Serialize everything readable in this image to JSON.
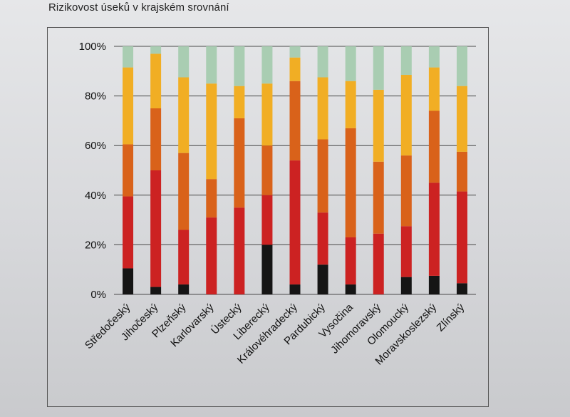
{
  "title": "Rizikovost úseků v krajském srovnání",
  "colors": {
    "black": "#151515",
    "red": "#cc2222",
    "orange": "#d9621a",
    "yellow": "#f1ae24",
    "green": "#a9cdb2"
  },
  "chart_data": {
    "type": "bar",
    "stacked": true,
    "percent": true,
    "title": "Rizikovost úseků v krajském srovnání",
    "xlabel": "",
    "ylabel": "",
    "ylim": [
      0,
      100
    ],
    "yticks": [
      "0%",
      "20%",
      "40%",
      "60%",
      "80%",
      "100%"
    ],
    "grid": true,
    "legend": "none",
    "categories": [
      "Středočeský",
      "Jihočeský",
      "Plzeňský",
      "Karlovarský",
      "Ústecký",
      "Liberecký",
      "Královéhradecký",
      "Pardubický",
      "Vysočina",
      "Jihomoravský",
      "Olomoucký",
      "Moravskoslezský",
      "Zlínský"
    ],
    "series": [
      {
        "color": "black",
        "values": [
          10.5,
          3,
          4,
          0,
          0,
          20,
          4,
          12,
          4,
          0,
          7,
          7.5,
          4.5
        ]
      },
      {
        "color": "red",
        "values": [
          29,
          47,
          22,
          31,
          35,
          20,
          50,
          21,
          19,
          24.5,
          20.5,
          37.5,
          37
        ]
      },
      {
        "color": "orange",
        "values": [
          21,
          25,
          31,
          15.5,
          36,
          20,
          32,
          29.5,
          44,
          29,
          28.5,
          29,
          16
        ]
      },
      {
        "color": "yellow",
        "values": [
          31,
          22,
          30.5,
          38.5,
          13,
          25,
          9.5,
          25,
          19,
          29,
          32.5,
          17.5,
          26.5
        ]
      },
      {
        "color": "green",
        "values": [
          8.5,
          3,
          12.5,
          15,
          16,
          15,
          4.5,
          12.5,
          14,
          17.5,
          11.5,
          8.5,
          16
        ]
      }
    ]
  }
}
